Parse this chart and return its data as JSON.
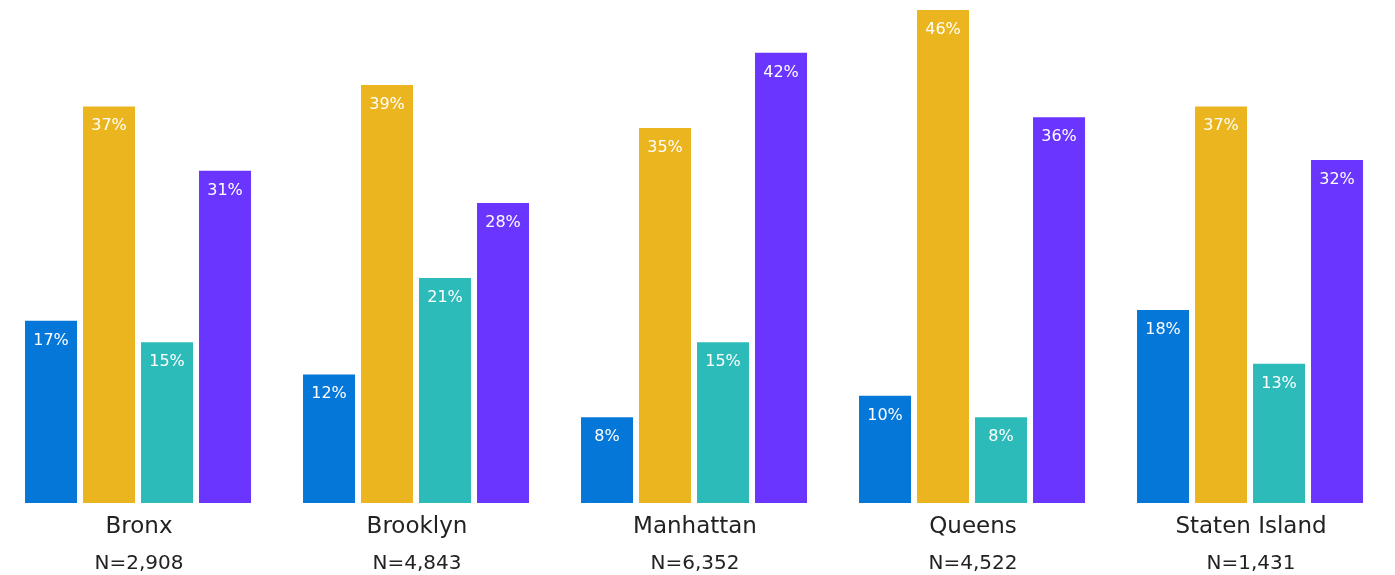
{
  "chart_data": {
    "type": "bar",
    "categories": [
      "Bronx\nN=2,908",
      "Brooklyn\nN=4,843",
      "Manhattan\nN=6,352",
      "Queens\nN=4,522",
      "Staten Island\nN=1,431"
    ],
    "series": [
      {
        "color": "#0477d8",
        "values": [
          17,
          12,
          8,
          10,
          18
        ],
        "value_labels": [
          "17%",
          "12%",
          "8%",
          "10%",
          "18%"
        ]
      },
      {
        "color": "#ebb51f",
        "values": [
          37,
          39,
          35,
          46,
          37
        ],
        "value_labels": [
          "37%",
          "39%",
          "35%",
          "46%",
          "37%"
        ]
      },
      {
        "color": "#2dbbb9",
        "values": [
          15,
          21,
          15,
          8,
          13
        ],
        "value_labels": [
          "15%",
          "21%",
          "15%",
          "8%",
          "13%"
        ]
      },
      {
        "color": "#6a35ff",
        "values": [
          31,
          28,
          42,
          36,
          32
        ],
        "value_labels": [
          "31%",
          "28%",
          "42%",
          "36%",
          "32%"
        ]
      }
    ],
    "grid": false,
    "legend": false
  }
}
